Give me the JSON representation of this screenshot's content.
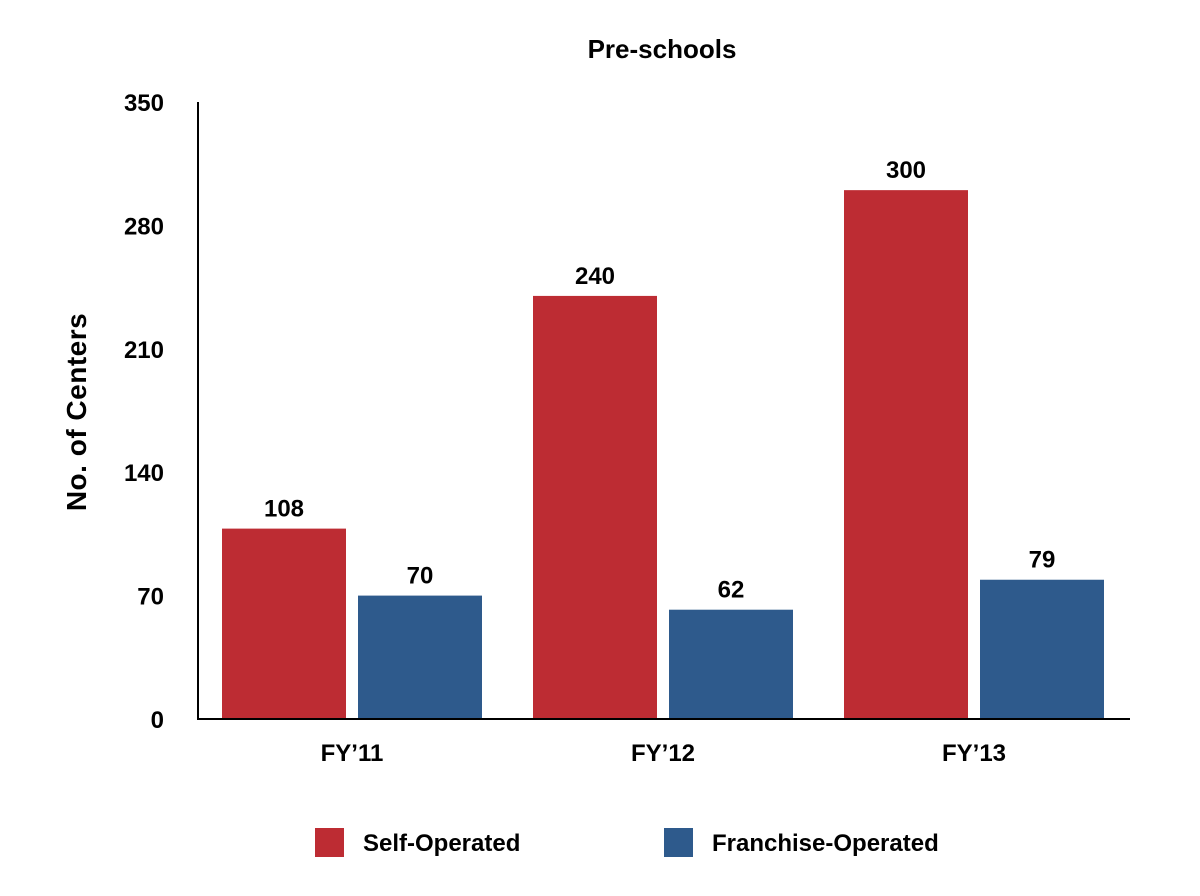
{
  "chart_data": {
    "type": "bar",
    "title": "Pre-schools",
    "xlabel": "",
    "ylabel": "No. of Centers",
    "ylim": [
      0,
      350
    ],
    "yticks": [
      "0",
      "70",
      "140",
      "210",
      "280",
      "350"
    ],
    "categories": [
      "FY’11",
      "FY’12",
      "FY’13"
    ],
    "series": [
      {
        "name": "Self-Operated",
        "color": "#bd2c33",
        "values": [
          108,
          240,
          300
        ]
      },
      {
        "name": "Franchise-Operated",
        "color": "#2e5a8c",
        "values": [
          70,
          62,
          79
        ]
      }
    ],
    "grid": false,
    "legend_position": "bottom"
  }
}
